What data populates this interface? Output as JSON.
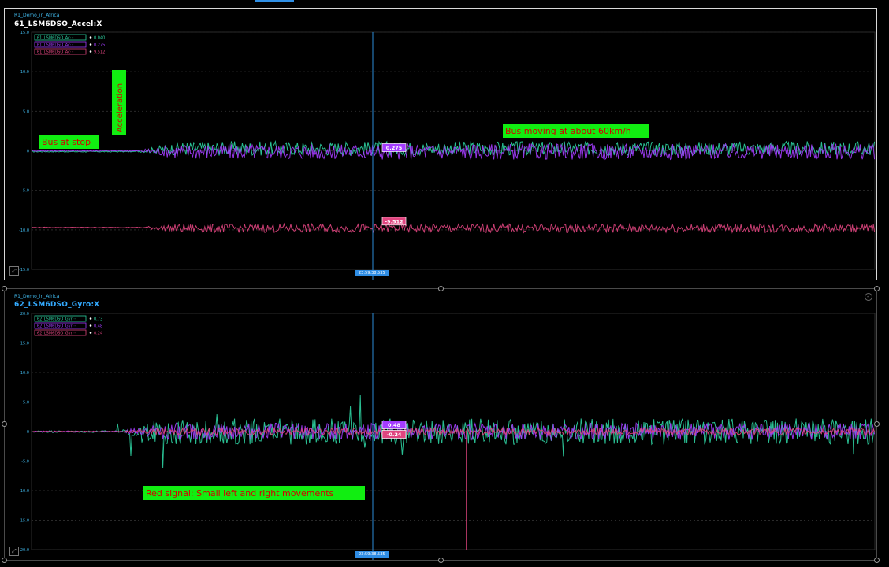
{
  "colors": {
    "teal": "#2ed3a2",
    "purple": "#a43cff",
    "pink": "#e0457f",
    "annotation_bg": "#11ee11",
    "annotation_fg": "#d40000",
    "time_tag": "#2f8de4"
  },
  "panels": [
    {
      "subtitle": "R1_Demo_in_Africa",
      "title": "61_LSM6DSO_Accel:X",
      "time_tag": "23:59:38.535",
      "cursor_tags": [
        "0.275",
        "-9.512"
      ],
      "annotations": [
        "Bus at stop",
        "Acceleration",
        "Bus moving at about 60km/h"
      ]
    },
    {
      "subtitle": "R1_Demo_in_Africa",
      "title": "62_LSM6DSO_Gyro:X",
      "time_tag": "23:59:38.535",
      "cursor_tags": [
        "0.48",
        "-0.24"
      ],
      "annotations": [
        "Red signal: Small left and right movements"
      ]
    }
  ],
  "chart_data": [
    {
      "type": "line",
      "title": "61_LSM6DSO_Accel:X",
      "ylim": [
        -15,
        15
      ],
      "yticks": [
        "15.0",
        "10.0",
        "5.0",
        "0",
        "-5.0",
        "-10.0",
        "-15.0"
      ],
      "grid": true,
      "legend_position": "top-left",
      "series": [
        {
          "name": "61_LSM6DSO_Ac···",
          "value_label": "0.040",
          "color": "#2ed3a2",
          "stop_level": -0.1,
          "move_level": 0.3,
          "noise": 0.9
        },
        {
          "name": "61_LSM6DSO_Ac···",
          "value_label": "0.275",
          "color": "#a43cff",
          "stop_level": 0.0,
          "move_level": -0.1,
          "noise": 1.0
        },
        {
          "name": "61_LSM6DSO_Ac···",
          "value_label": "9.512",
          "color": "#e0457f",
          "stop_level": -9.7,
          "move_level": -9.8,
          "noise": 0.55
        }
      ]
    },
    {
      "type": "line",
      "title": "62_LSM6DSO_Gyro:X",
      "ylim": [
        -20,
        20
      ],
      "yticks": [
        "20.0",
        "15.0",
        "10.0",
        "5.0",
        "0",
        "-5.0",
        "-10.0",
        "-15.0",
        "-20.0"
      ],
      "grid": true,
      "legend_position": "top-left",
      "series": [
        {
          "name": "62_LSM6DSO_Gyr···",
          "value_label": "0.73",
          "color": "#2ed3a2",
          "stop_level": 0.0,
          "move_level": 0.0,
          "noise": 2.2
        },
        {
          "name": "62_LSM6DSO_Gyr···",
          "value_label": "0.48",
          "color": "#a43cff",
          "stop_level": 0.0,
          "move_level": 0.0,
          "noise": 1.4
        },
        {
          "name": "62_LSM6DSO_Gyr···",
          "value_label": "0.24",
          "color": "#e0457f",
          "stop_level": 0.0,
          "move_level": 0.0,
          "noise": 0.6
        }
      ]
    }
  ]
}
